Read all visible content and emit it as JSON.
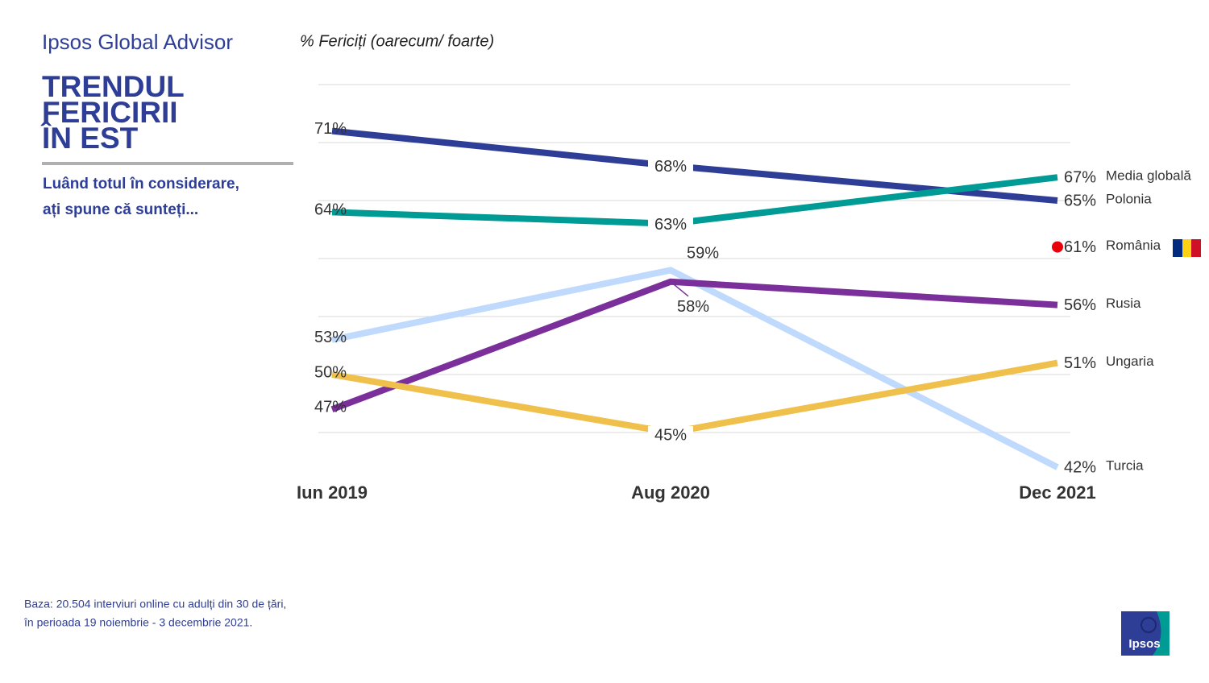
{
  "header": {
    "brand": "Ipsos Global Advisor",
    "title": [
      "TRENDUL",
      "FERICIRII",
      "ÎN EST"
    ],
    "question": [
      "Luând totul în considerare,",
      "ați spune că sunteți..."
    ]
  },
  "footnote": [
    "Baza: 20.504 interviuri online cu adulți din 30 de țări,",
    "în perioada 19 noiembrie - 3 decembrie 2021."
  ],
  "logo": "Ipsos",
  "chart_data": {
    "type": "line",
    "y_label": "% Fericiți (oarecum/ foarte)",
    "x": [
      "2019-06",
      "2020-08",
      "2021-12"
    ],
    "xlim": [
      "2019-06",
      "2021-12"
    ],
    "xticks": [
      {
        "value": "2019-06",
        "label": "Iun 2019"
      },
      {
        "value": "2020-08",
        "label": "Aug 2020"
      },
      {
        "value": "2021-12",
        "label": "Dec 2021"
      }
    ],
    "ylim": [
      40,
      75
    ],
    "yticks": [
      45,
      50,
      55,
      60,
      65,
      70,
      75
    ],
    "grid": true,
    "series": [
      {
        "name": "Polonia",
        "color": "#2e3e96",
        "values": [
          71,
          68,
          65
        ],
        "value_labels": [
          "71%",
          "68%",
          "65%"
        ]
      },
      {
        "name": "Media globală",
        "color": "#009b94",
        "values": [
          64,
          63,
          67
        ],
        "value_labels": [
          "64%",
          "63%",
          "67%"
        ]
      },
      {
        "name": "Turcia",
        "color": "#bfdafc",
        "values": [
          53,
          59,
          42
        ],
        "value_labels": [
          "53%",
          "59%",
          "42%"
        ]
      },
      {
        "name": "Rusia",
        "color": "#7b2f9a",
        "values": [
          47,
          58,
          56
        ],
        "value_labels": [
          "47%",
          "58%",
          "56%"
        ]
      },
      {
        "name": "Ungaria",
        "color": "#f0c04c",
        "values": [
          50,
          45,
          51
        ],
        "value_labels": [
          "50%",
          "45%",
          "51%"
        ]
      },
      {
        "name": "România",
        "color": "#e8000b",
        "values": [
          null,
          null,
          61
        ],
        "value_labels": [
          null,
          null,
          "61%"
        ],
        "marker_only": true
      }
    ]
  }
}
